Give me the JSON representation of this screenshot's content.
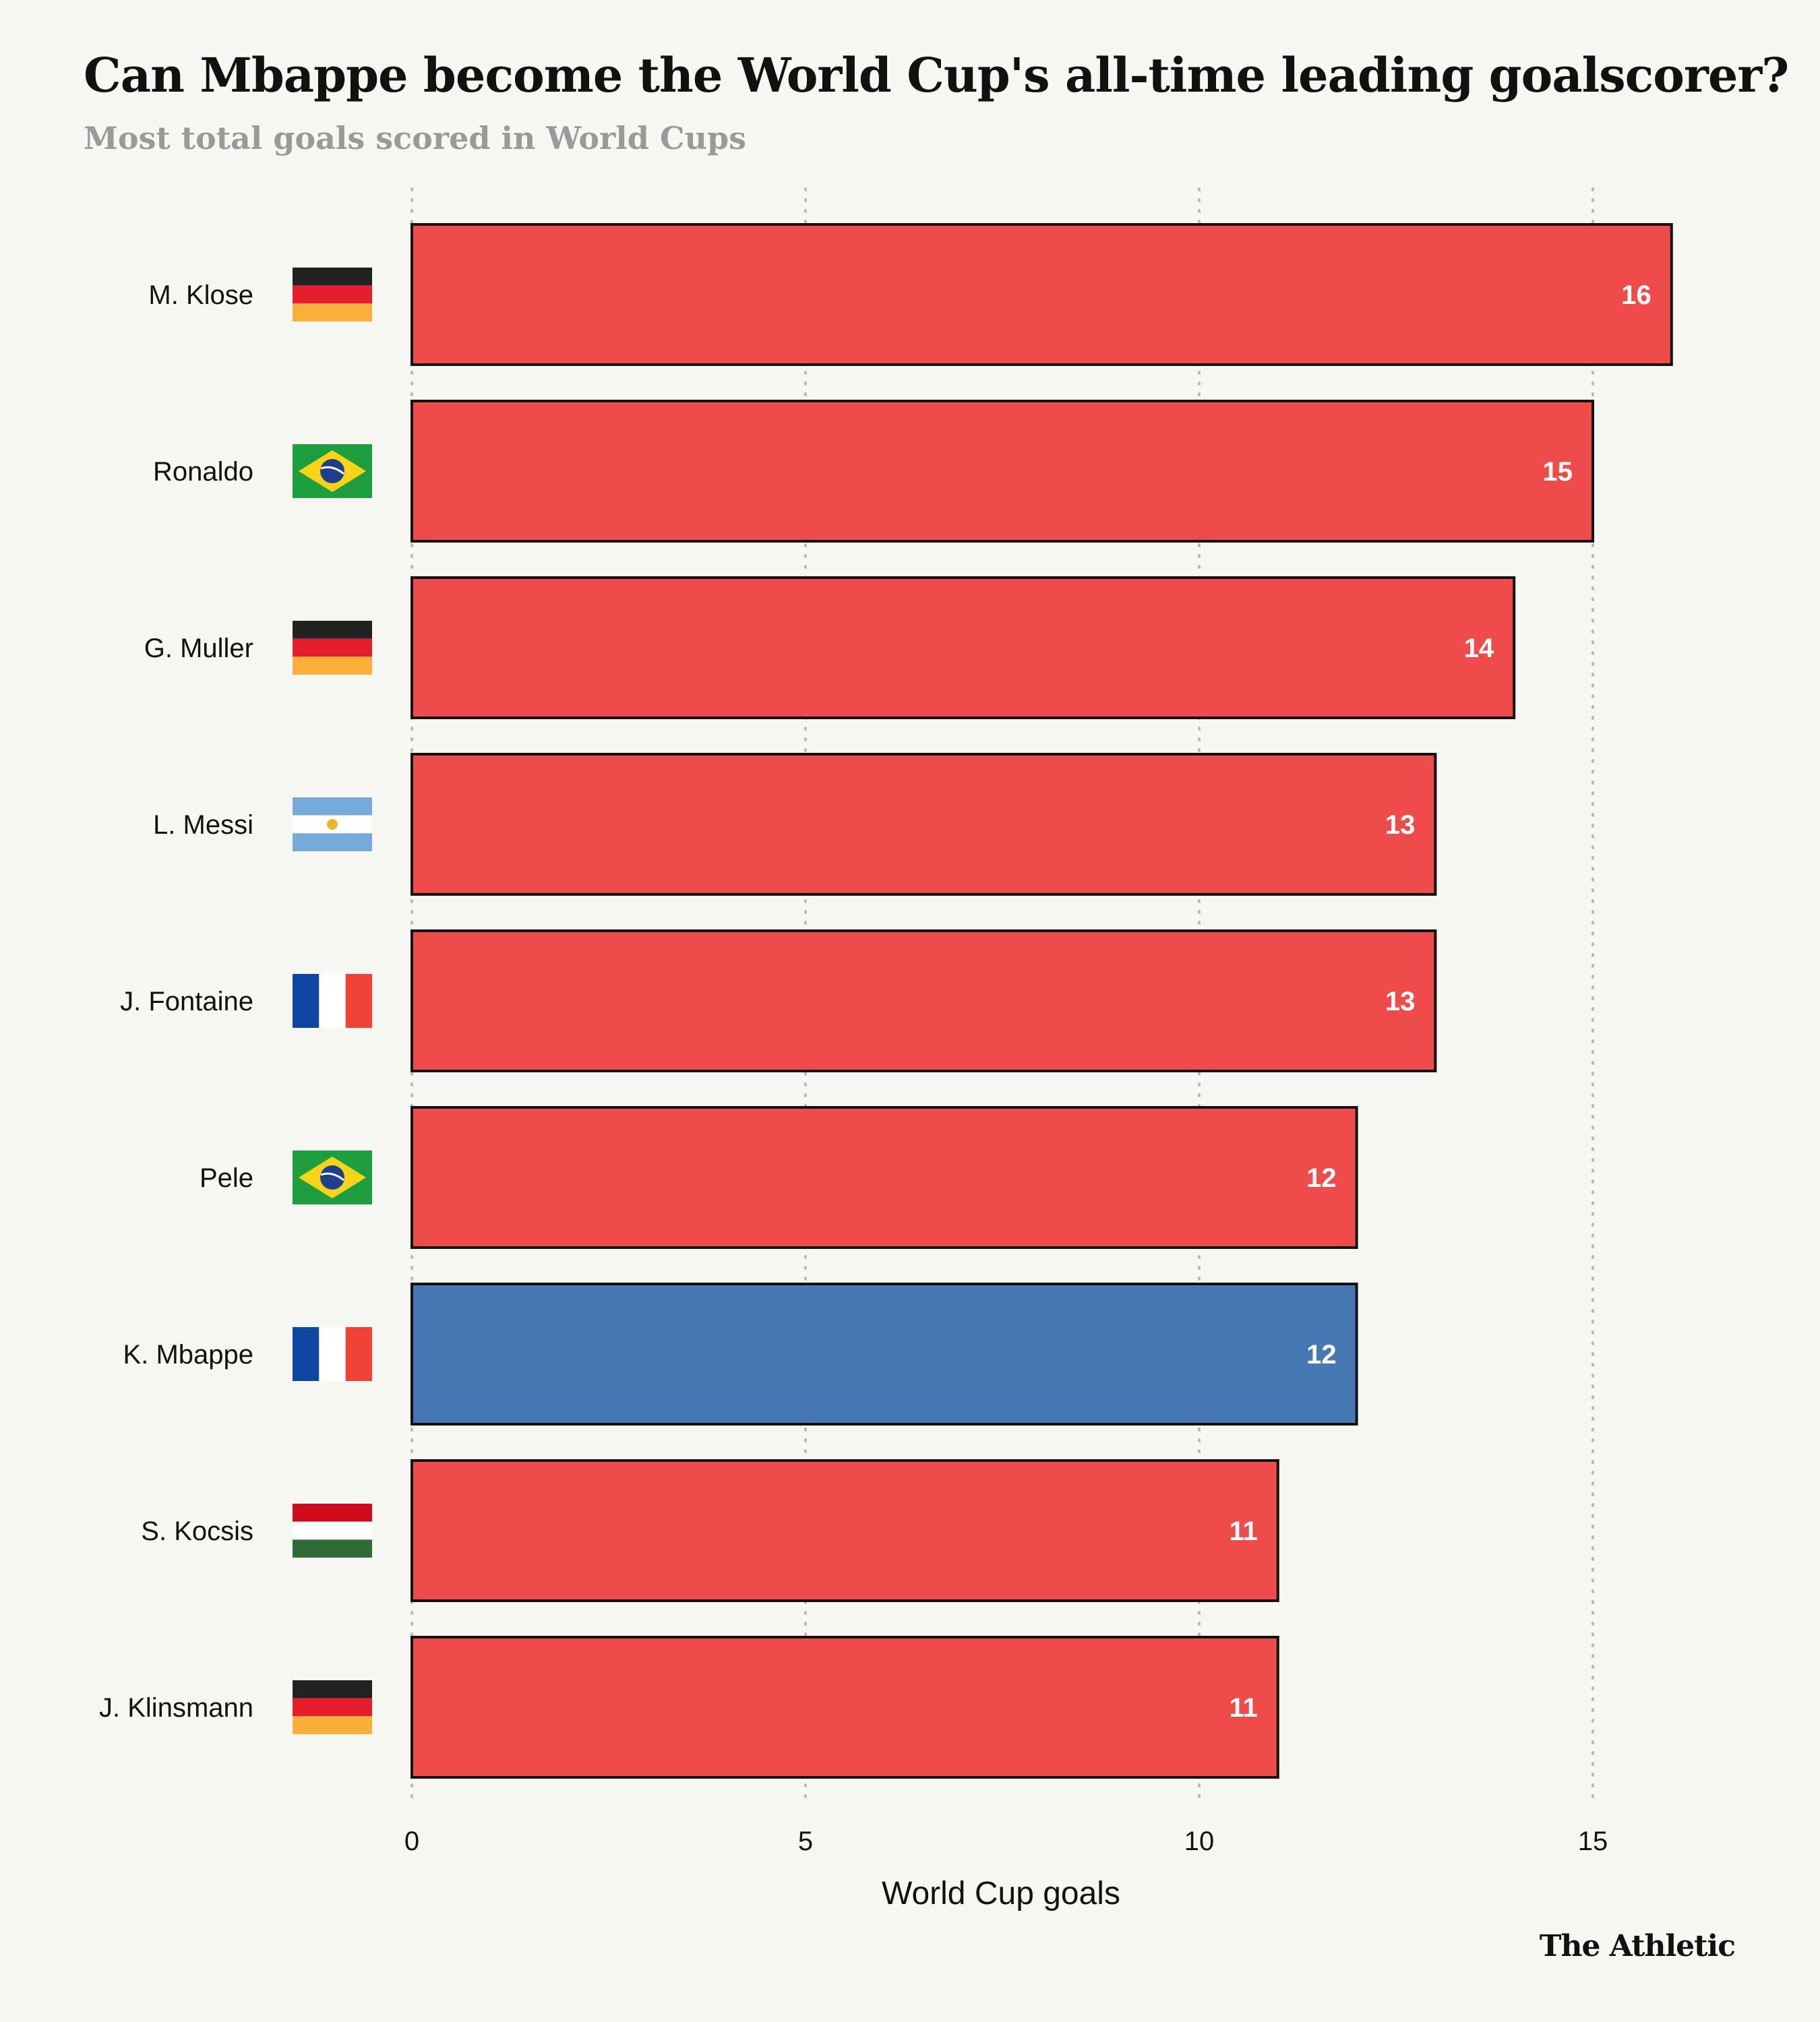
{
  "header": {
    "title": "Can Mbappe become the World Cup's all-time leading goalscorer?",
    "subtitle": "Most total goals scored in World Cups"
  },
  "chart_data": {
    "type": "bar",
    "orientation": "horizontal",
    "title": "Can Mbappe become the World Cup's all-time leading goalscorer?",
    "subtitle": "Most total goals scored in World Cups",
    "xlabel": "World Cup goals",
    "ylabel": "",
    "xlim": [
      0,
      16
    ],
    "xticks": [
      0,
      5,
      10,
      15
    ],
    "grid": "vertical dotted",
    "categories": [
      "M. Klose",
      "Ronaldo",
      "G. Muller",
      "L. Messi",
      "J. Fontaine",
      "Pele",
      "K. Mbappe",
      "S. Kocsis",
      "J. Klinsmann"
    ],
    "values": [
      16,
      15,
      14,
      13,
      13,
      12,
      12,
      11,
      11
    ],
    "flags": [
      "germany-flag",
      "brazil-flag",
      "germany-flag",
      "argentina-flag",
      "france-flag",
      "brazil-flag",
      "france-flag",
      "hungary-flag",
      "germany-flag"
    ],
    "highlight": "K. Mbappe"
  },
  "colors": {
    "bar_default": "#f04b4b",
    "bar_highlight": "#4878b4",
    "bar_outline": "#111111",
    "grid": "#bbbbbb",
    "background": "#f7f7f3"
  },
  "footer": {
    "brand": "The Athletic"
  }
}
